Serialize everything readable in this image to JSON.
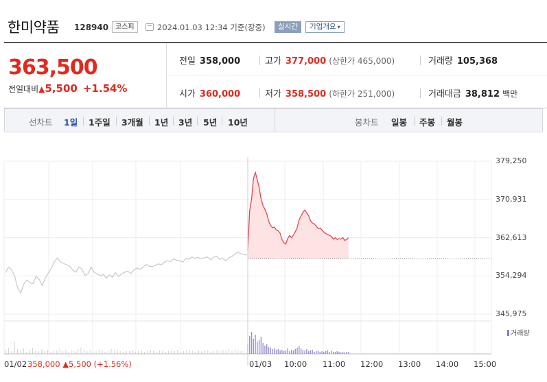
{
  "header": {
    "name": "한미약품",
    "code": "128940",
    "market": "코스피",
    "datetime": "2024.01.03 12:34 기준(장중)",
    "realtime": "실시간",
    "company_info": "기업개요",
    "company_info_arrow": "▾"
  },
  "price": {
    "current": "363,500",
    "change_label": "전일대비",
    "change_symbol": "▲",
    "change_value": "5,500",
    "change_pct": "+1.54%",
    "color_up": "#e12a1e"
  },
  "stats": {
    "prev_label": "전일",
    "prev_value": "358,000",
    "high_label": "고가",
    "high_value": "377,000",
    "upper_limit": "(상한가 465,000)",
    "volume_label": "거래량",
    "volume_value": "105,368",
    "open_label": "시가",
    "open_value": "360,000",
    "low_label": "저가",
    "low_value": "358,500",
    "lower_limit": "(하한가 251,000)",
    "amount_label": "거래대금",
    "amount_value": "38,812",
    "amount_unit": "백만"
  },
  "tabs": {
    "line_label": "선차트",
    "periods": [
      "1일",
      "1주일",
      "3개월",
      "1년",
      "3년",
      "5년",
      "10년"
    ],
    "active": "1일",
    "candle_label": "봉차트",
    "candles": [
      "일봉",
      "주봉",
      "월봉"
    ]
  },
  "chart_data": {
    "type": "line",
    "y_ticks": [
      "379,250",
      "370,931",
      "362,613",
      "354,294",
      "345,975"
    ],
    "ylim": [
      345975,
      379250
    ],
    "x_ticks": [
      "01/02",
      "01/03",
      "10:00",
      "11:00",
      "12:00",
      "13:00",
      "14:00",
      "15:00"
    ],
    "prev_close": 358000,
    "prev_day_label": "01/02",
    "prev_day_summary": "358,000 ▲5,500 (+1.56%)",
    "legend": "거래량",
    "series": [
      {
        "day": "01/02",
        "color": "#c8c8c8",
        "x": [
          0,
          1,
          2,
          3,
          4,
          5,
          6,
          7,
          8,
          9,
          10,
          11,
          12,
          13,
          14,
          15,
          16,
          17,
          18,
          19,
          20,
          21,
          22,
          23,
          24,
          25,
          26,
          27,
          28,
          29,
          30,
          31,
          32,
          33,
          34,
          35,
          36,
          37,
          38,
          39,
          40,
          41,
          42,
          43,
          44,
          45,
          46,
          47,
          48,
          49,
          50,
          51,
          52,
          53,
          54,
          55,
          56,
          57,
          58,
          59,
          60,
          61,
          62,
          63,
          64,
          65,
          66,
          67,
          68,
          69,
          70,
          71,
          72,
          73,
          74,
          75,
          76,
          77,
          78,
          79
        ],
        "values": [
          355000,
          356200,
          355600,
          354200,
          351600,
          350600,
          352500,
          353400,
          352800,
          352600,
          354200,
          353600,
          352200,
          353800,
          354900,
          356000,
          357400,
          358200,
          357300,
          357000,
          356700,
          356400,
          355600,
          355100,
          356200,
          355800,
          354400,
          354800,
          356200,
          355100,
          354700,
          354300,
          354600,
          353800,
          354500,
          354000,
          355000,
          354200,
          354700,
          355100,
          355300,
          354800,
          355600,
          356000,
          355700,
          356200,
          356800,
          356400,
          356300,
          356600,
          356900,
          356700,
          357300,
          357600,
          357400,
          358000,
          357700,
          357600,
          357300,
          358100,
          357900,
          358400,
          358100,
          358300,
          358000,
          358200,
          358400,
          357800,
          358300,
          358600,
          357900,
          358100,
          357600,
          358200,
          358500,
          359000,
          359500,
          359100,
          359000,
          358800
        ]
      },
      {
        "day": "01/03",
        "color": "#e8444a",
        "x": [
          0,
          3,
          6,
          9,
          12,
          15,
          18,
          21,
          24,
          27,
          30,
          33,
          36,
          39,
          42,
          45,
          48,
          51,
          54,
          57,
          60,
          63,
          66,
          69,
          72,
          75,
          78,
          81,
          84,
          87,
          90,
          93,
          96,
          99,
          102,
          105,
          108,
          111,
          114,
          117,
          120,
          123,
          126,
          129,
          132,
          135,
          138,
          141,
          144,
          147,
          150,
          153,
          156,
          159
        ],
        "values": [
          360000,
          368500,
          371000,
          375500,
          376800,
          375200,
          373500,
          371000,
          369600,
          368800,
          367800,
          366200,
          365300,
          364800,
          364900,
          364300,
          364100,
          363600,
          362200,
          361500,
          361200,
          362400,
          363100,
          362600,
          363200,
          363900,
          364800,
          366500,
          367300,
          368100,
          368600,
          368000,
          367400,
          366300,
          365800,
          365600,
          365100,
          364600,
          364700,
          364300,
          363800,
          363500,
          363300,
          363100,
          362900,
          362300,
          362600,
          362200,
          362400,
          362300,
          362600,
          362000,
          362200,
          362600
        ]
      }
    ],
    "volume": {
      "day1": [
        6,
        9,
        4,
        18,
        7,
        5,
        8,
        3,
        6,
        9,
        5,
        4,
        7,
        5,
        6,
        3,
        4,
        5,
        8,
        4,
        6,
        3,
        5,
        4,
        7,
        9,
        6,
        4,
        5,
        3,
        4,
        6,
        5,
        3,
        4,
        7,
        5,
        6,
        4,
        3,
        5,
        4,
        6,
        3,
        4,
        5,
        3,
        4,
        6,
        4,
        3,
        5,
        4,
        3,
        4,
        5,
        4,
        6,
        3,
        4,
        5,
        6,
        4,
        3,
        5,
        4,
        6,
        5,
        3,
        4,
        5,
        4,
        6,
        5,
        7,
        4,
        6,
        5,
        4,
        5
      ],
      "day2": [
        14,
        26,
        32,
        22,
        28,
        18,
        20,
        25,
        16,
        12,
        14,
        10,
        9,
        7,
        8,
        6,
        7,
        5,
        6,
        4,
        5,
        8,
        4,
        6,
        5,
        7,
        9,
        12,
        8,
        6,
        5,
        7,
        4,
        5,
        6,
        3,
        4,
        5,
        3,
        4,
        3,
        4,
        5,
        3,
        4,
        3,
        3,
        4,
        3,
        2,
        3,
        2,
        3,
        3
      ]
    }
  }
}
